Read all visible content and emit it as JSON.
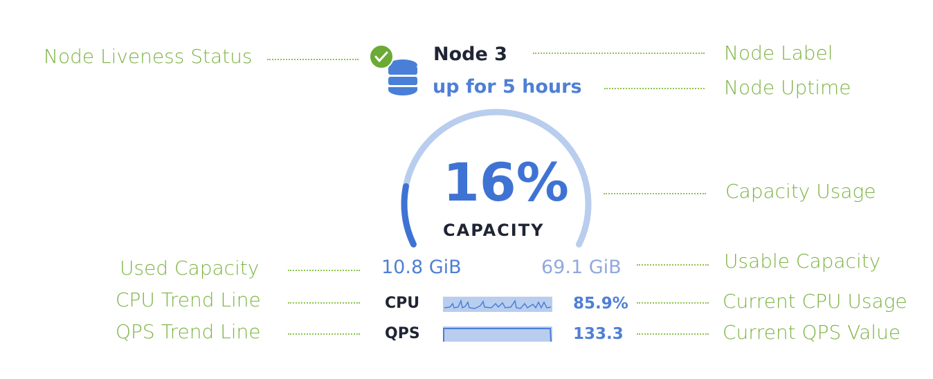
{
  "node": {
    "label": "Node 3",
    "uptime": "up for 5 hours",
    "liveness": "live",
    "icon": "database-icon",
    "status_icon": "check-circle-icon"
  },
  "capacity": {
    "percent_text": "16%",
    "percent": 16,
    "label": "CAPACITY",
    "used": "10.8 GiB",
    "usable": "69.1 GiB"
  },
  "metrics": {
    "cpu": {
      "label": "CPU",
      "value": "85.9%"
    },
    "qps": {
      "label": "QPS",
      "value": "133.3"
    }
  },
  "annotations": {
    "liveness": "Node Liveness Status",
    "label": "Node Label",
    "uptime": "Node Uptime",
    "capacity_usage": "Capacity Usage",
    "used_capacity": "Used Capacity",
    "usable_capacity": "Usable Capacity",
    "cpu_trend": "CPU Trend Line",
    "cpu_current": "Current CPU Usage",
    "qps_trend": "QPS Trend Line",
    "qps_current": "Current QPS Value"
  },
  "colors": {
    "annotation": "#7cb342",
    "accent": "#3f73d3",
    "arc_track": "#b9cdee",
    "live": "#6aaa35"
  }
}
